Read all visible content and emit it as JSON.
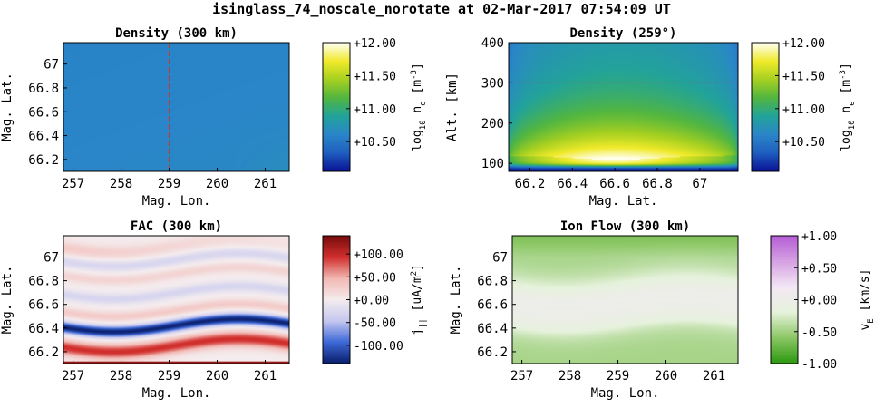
{
  "title": "isinglass_74_noscale_norotate at 02-Mar-2017 07:54:09 UT",
  "colors": {
    "density_map": [
      "#0a1496",
      "#1f5fc0",
      "#2a86c8",
      "#22a39a",
      "#52b640",
      "#a6d021",
      "#f0ea2a",
      "#fffff0"
    ],
    "fac_map": [
      "#0a1f6e",
      "#3f6ad8",
      "#c6c8f0",
      "#f4ecee",
      "#f2b9b4",
      "#d2302d",
      "#780c0c"
    ],
    "ion_map": [
      "#2e9a12",
      "#8cc765",
      "#e6f2dc",
      "#f3e8f5",
      "#d7a2e3",
      "#b55fd6"
    ]
  },
  "chart_data": [
    {
      "id": "density-300km",
      "type": "heatmap",
      "title": "Density (300 km)",
      "xlabel": "Mag. Lon.",
      "ylabel": "Mag. Lat.",
      "xlim": [
        256.8,
        261.5
      ],
      "ylim": [
        66.1,
        67.18
      ],
      "xticks": [
        "257",
        "258",
        "259",
        "260",
        "261"
      ],
      "xtick_values": [
        257,
        258,
        259,
        260,
        261
      ],
      "yticks": [
        "66.2",
        "66.4",
        "66.6",
        "66.8",
        "67"
      ],
      "ytick_values": [
        66.2,
        66.4,
        66.6,
        66.8,
        67.0
      ],
      "marker_line": {
        "orientation": "vertical",
        "value": 259
      },
      "colorbar": {
        "label": "log10 ne [m-3]",
        "label_parts": [
          "log",
          "10",
          " n",
          "e",
          " [m",
          "-3",
          "]"
        ],
        "range": [
          10.05,
          12.0
        ],
        "ticks": [
          "+10.50",
          "+11.00",
          "+11.50",
          "+12.00"
        ],
        "tick_values": [
          10.5,
          11.0,
          11.5,
          12.0
        ]
      },
      "field": "uniform ~10.6 with slight increase toward high longitude, low latitude"
    },
    {
      "id": "density-259deg",
      "type": "heatmap",
      "title": "Density (259°)",
      "xlabel": "Mag. Lat.",
      "ylabel": "Alt. [km]",
      "xlim": [
        66.1,
        67.18
      ],
      "ylim": [
        80,
        400
      ],
      "xticks": [
        "66.2",
        "66.4",
        "66.6",
        "66.8",
        "67"
      ],
      "xtick_values": [
        66.2,
        66.4,
        66.6,
        66.8,
        67.0
      ],
      "yticks": [
        "100",
        "200",
        "300",
        "400"
      ],
      "ytick_values": [
        100,
        200,
        300,
        400
      ],
      "marker_line": {
        "orientation": "horizontal",
        "value": 300
      },
      "colorbar": {
        "label": "log10 ne [m-3]",
        "label_parts": [
          "log",
          "10",
          " n",
          "e",
          " [m",
          "-3",
          "]"
        ],
        "range": [
          10.05,
          12.0
        ],
        "ticks": [
          "+10.50",
          "+11.00",
          "+11.50",
          "+12.00"
        ],
        "tick_values": [
          10.5,
          11.0,
          11.5,
          12.0
        ]
      },
      "field": "E-region peak ~11.85 near 110-140 km centered at 66.6 lat; decreasing with altitude; low near 80 km"
    },
    {
      "id": "fac-300km",
      "type": "heatmap",
      "title": "FAC (300 km)",
      "xlabel": "Mag. Lon.",
      "ylabel": "Mag. Lat.",
      "xlim": [
        256.8,
        261.5
      ],
      "ylim": [
        66.1,
        67.18
      ],
      "xticks": [
        "257",
        "258",
        "259",
        "260",
        "261"
      ],
      "xtick_values": [
        257,
        258,
        259,
        260,
        261
      ],
      "yticks": [
        "66.2",
        "66.4",
        "66.6",
        "66.8",
        "67"
      ],
      "ytick_values": [
        66.2,
        66.4,
        66.6,
        66.8,
        67.0
      ],
      "colorbar": {
        "label": "j|| [uA/m2]",
        "label_parts": [
          "j",
          "||",
          " [uA/m",
          "2",
          "]"
        ],
        "range": [
          -140,
          140
        ],
        "ticks": [
          "-100.00",
          "-50.00",
          "+0.00",
          "+50.00",
          "+100.00"
        ],
        "tick_values": [
          -100,
          -50,
          0,
          50,
          100
        ]
      },
      "field": "wavy arcs: strong negative band ~66.38-66.55, strong positive band ~66.25, alternating weak bands above"
    },
    {
      "id": "ion-flow-300km",
      "type": "heatmap",
      "title": "Ion Flow (300 km)",
      "xlabel": "Mag. Lon.",
      "ylabel": "Mag. Lat.",
      "xlim": [
        256.8,
        261.5
      ],
      "ylim": [
        66.1,
        67.18
      ],
      "xticks": [
        "257",
        "258",
        "259",
        "260",
        "261"
      ],
      "xtick_values": [
        257,
        258,
        259,
        260,
        261
      ],
      "yticks": [
        "66.2",
        "66.4",
        "66.6",
        "66.8",
        "67"
      ],
      "ytick_values": [
        66.2,
        66.4,
        66.6,
        66.8,
        67.0
      ],
      "colorbar": {
        "label": "vE [km/s]",
        "label_parts": [
          "v",
          "E",
          " [km/s]"
        ],
        "range": [
          -1.0,
          1.0
        ],
        "ticks": [
          "-1.00",
          "-0.50",
          "+0.00",
          "+0.50",
          "+1.00"
        ],
        "tick_values": [
          -1.0,
          -0.5,
          0.0,
          0.5,
          1.0
        ]
      },
      "field": "mostly negative (-0.5) at edges, near zero to slightly positive band ~66.45-66.75"
    }
  ]
}
